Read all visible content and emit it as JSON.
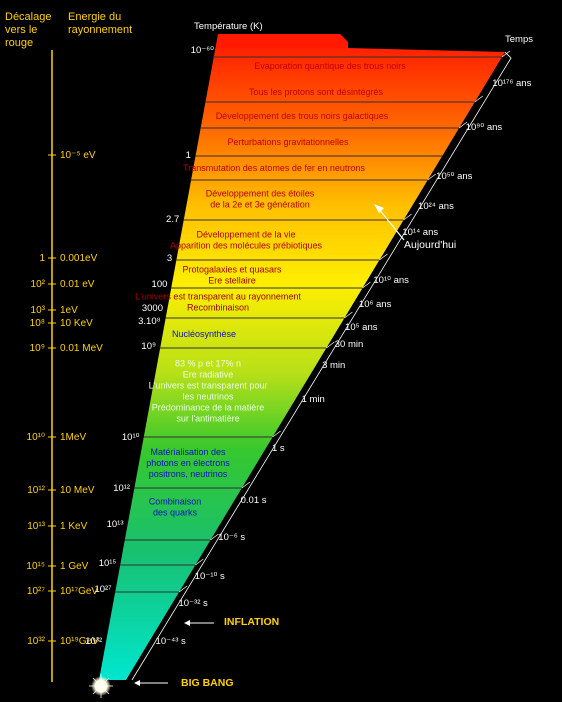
{
  "headers": {
    "redshift_title_1": "Décalage",
    "redshift_title_2": "vers le",
    "redshift_title_3": "rouge",
    "energy_title_1": "Energie du",
    "energy_title_2": "rayonnement",
    "temperature_title": "Température (K)",
    "time_title": "Temps"
  },
  "axis_rows": [
    {
      "redshift": "",
      "energy": "10⁻⁵ eV"
    },
    {
      "redshift": "1",
      "energy": "0.001eV"
    },
    {
      "redshift": "10²",
      "energy": "0.01 eV"
    },
    {
      "redshift": "10³",
      "energy": "1eV"
    },
    {
      "redshift": "10⁸",
      "energy": "10 KeV"
    },
    {
      "redshift": "10⁹",
      "energy": "0.01 MeV"
    },
    {
      "redshift": "10¹⁰",
      "energy": "1MeV"
    },
    {
      "redshift": "10¹²",
      "energy": "10 MeV"
    },
    {
      "redshift": "10¹³",
      "energy": "1 KeV"
    },
    {
      "redshift": "10¹⁵",
      "energy": "1 GeV"
    },
    {
      "redshift": "10²⁷",
      "energy": "10¹⁷GeV"
    },
    {
      "redshift": "10³²",
      "energy": "10¹⁹GeV"
    }
  ],
  "temperatures": [
    "10⁻⁶⁰",
    "1",
    "2.7",
    "3",
    "100",
    "3000",
    "3.10⁸",
    "10⁹",
    "10¹⁰",
    "10¹²",
    "10¹³",
    "10¹⁵",
    "10²⁷",
    "10³²"
  ],
  "times": [
    "10¹⁷⁶ ans",
    "10⁹⁰ ans",
    "10⁵⁰ ans",
    "10²⁴ ans",
    "10¹⁴ ans",
    "10¹⁰ ans",
    "10⁶ ans",
    "10⁵ ans",
    "30 min",
    "3 min",
    "1 min",
    "1 s",
    "0.01 s",
    "10⁻⁶ s",
    "10⁻¹⁰ s",
    "10⁻³² s",
    "10⁻⁴³ s"
  ],
  "eras": [
    {
      "lines": [
        "Evaporation quantique des trous noirs"
      ]
    },
    {
      "lines": [
        "Tous les protons sont désintégrés"
      ]
    },
    {
      "lines": [
        "Développement des trous noirs galactiques"
      ]
    },
    {
      "lines": [
        "Perturbations gravitationnelles"
      ]
    },
    {
      "lines": [
        "Transmutation des atomes de fer en neutrons"
      ]
    },
    {
      "lines": [
        "Développement des étoiles",
        "de la 2e et 3e génération"
      ]
    },
    {
      "lines": [
        "Développement de la vie",
        "Apparition des molécules prébiotiques"
      ]
    },
    {
      "lines": [
        "Protogalaxies et quasars",
        "Ere stellaire"
      ]
    },
    {
      "lines": [
        "L'univers est transparent au rayonnement",
        "Recombinaison"
      ]
    },
    {
      "lines": [
        "Nucléosynthèse"
      ]
    },
    {
      "lines": [
        "83 % p et 17% n",
        "Ere radiative",
        "L'univers est transparent pour",
        "les neutrinos",
        "Prédominance de la matière",
        "sur l'antimatière"
      ]
    },
    {
      "lines": [
        "Matérialisation des",
        "photons en électrons",
        "positrons, neutrinos"
      ]
    },
    {
      "lines": [
        "Combinaison",
        "des quarks"
      ]
    }
  ],
  "markers": {
    "today": "Aujourd'hui",
    "inflation": "INFLATION",
    "big_bang": "BIG BANG"
  },
  "colors": {
    "labels": "#ffd200",
    "top": "#ff1a00",
    "middle": "#ffe600",
    "lower": "#2ec82e",
    "bottom": "#00e0c8"
  }
}
